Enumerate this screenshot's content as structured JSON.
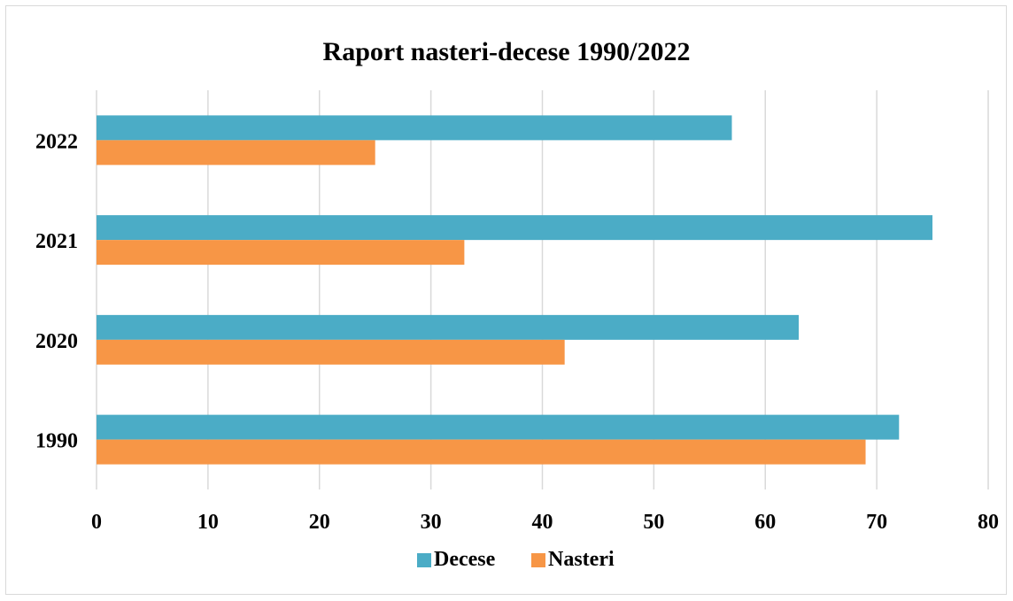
{
  "chart_data": {
    "type": "bar",
    "orientation": "horizontal",
    "title": "Raport nasteri-decese 1990/2022",
    "xlabel": "",
    "ylabel": "",
    "categories": [
      "1990",
      "2020",
      "2021",
      "2022"
    ],
    "series": [
      {
        "name": "Decese",
        "color": "#4BACC6",
        "values": [
          72,
          63,
          75,
          57
        ]
      },
      {
        "name": "Nasteri",
        "color": "#F79646",
        "values": [
          69,
          42,
          33,
          25
        ]
      }
    ],
    "xlim": [
      0,
      80
    ],
    "x_ticks": [
      0,
      10,
      20,
      30,
      40,
      50,
      60,
      70,
      80
    ],
    "grid": "vertical",
    "legend_position": "bottom"
  }
}
